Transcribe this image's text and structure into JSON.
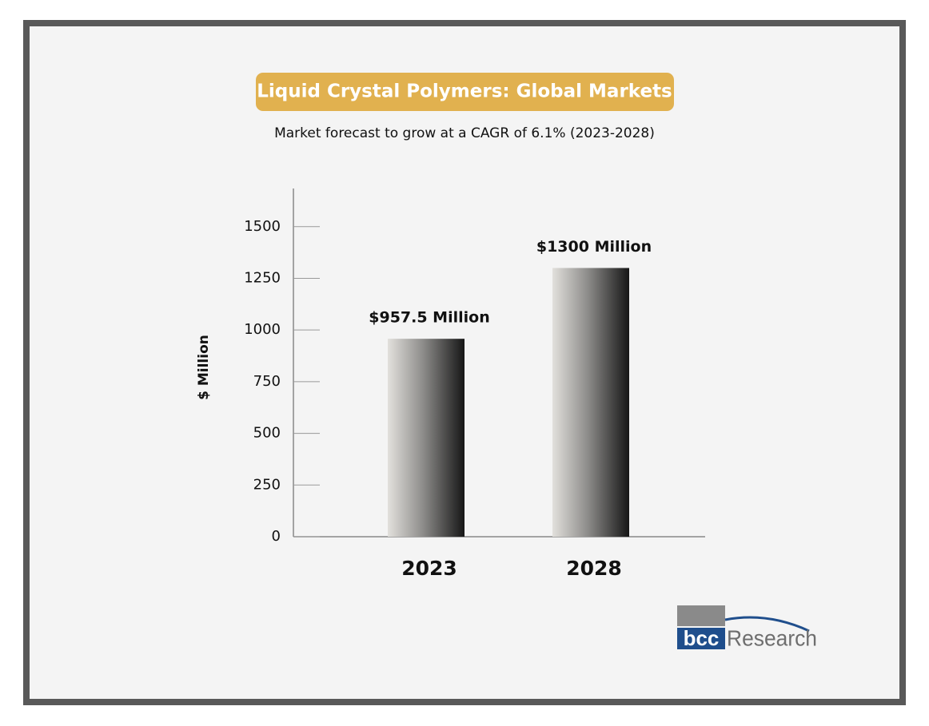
{
  "chart_data": {
    "type": "bar",
    "title": "Liquid Crystal Polymers: Global Markets",
    "subtitle": "Market forecast to grow at a CAGR of 6.1% (2023-2028)",
    "y_label": "$ Million",
    "categories": [
      "2023",
      "2028"
    ],
    "values": [
      957.5,
      1300
    ],
    "value_labels": [
      "$957.5 Million",
      "$1300 Million"
    ],
    "ylim": [
      0,
      1700
    ],
    "yticks": [
      0,
      250,
      500,
      750,
      1000,
      1250,
      1500
    ]
  },
  "logo": {
    "mark": "bcc",
    "text": "Research"
  }
}
